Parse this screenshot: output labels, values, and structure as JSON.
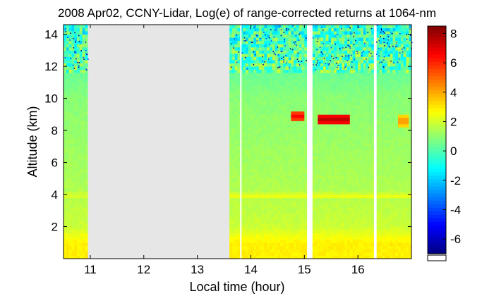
{
  "chart_data": {
    "type": "heatmap",
    "title": "2008 Apr02, CCNY-Lidar, Log(e) of range-corrected returns at 1064-nm",
    "xlabel": "Local time (hour)",
    "ylabel": "Altitude (km)",
    "xlim": [
      10.5,
      17.0
    ],
    "ylim": [
      0.0,
      14.6
    ],
    "x_ticks": [
      11,
      12,
      13,
      14,
      15,
      16
    ],
    "y_ticks": [
      2,
      4,
      6,
      8,
      10,
      12,
      14
    ],
    "colorbar": {
      "range": [
        -7,
        8.5
      ],
      "ticks": [
        8,
        6,
        4,
        2,
        0,
        -2,
        -4,
        -6
      ],
      "colormap": "jet"
    },
    "no_data_intervals": [
      [
        10.95,
        13.62
      ]
    ],
    "data_gaps": [
      [
        13.8,
        13.82
      ],
      [
        15.05,
        15.15
      ],
      [
        16.3,
        16.33
      ]
    ],
    "profile_log_signal": {
      "altitude_km": [
        0.2,
        1.0,
        1.5,
        2.0,
        3.0,
        3.8,
        3.95,
        4.2,
        5.0,
        6.0,
        7.0,
        8.0,
        9.0,
        10.0,
        11.0,
        12.0,
        13.0,
        14.0,
        14.6
      ],
      "value": [
        2.9,
        2.9,
        2.4,
        1.9,
        1.7,
        1.6,
        2.4,
        1.5,
        1.4,
        1.3,
        1.2,
        1.1,
        1.0,
        0.9,
        0.6,
        0.3,
        0.0,
        -0.3,
        -0.5
      ]
    },
    "features": [
      {
        "kind": "cloud",
        "x_start": 14.75,
        "x_end": 15.02,
        "altitude_km": 8.9,
        "value": 6.5
      },
      {
        "kind": "cloud",
        "x_start": 15.25,
        "x_end": 15.85,
        "altitude_km": 8.7,
        "value": 7.5
      },
      {
        "kind": "cloud",
        "x_start": 16.75,
        "x_end": 16.95,
        "altitude_km": 8.6,
        "value": 4.5
      },
      {
        "kind": "aerosol-layer-top",
        "x_start": 13.62,
        "x_end": 17.0,
        "altitude_km": 3.9,
        "value": 2.4
      }
    ]
  }
}
